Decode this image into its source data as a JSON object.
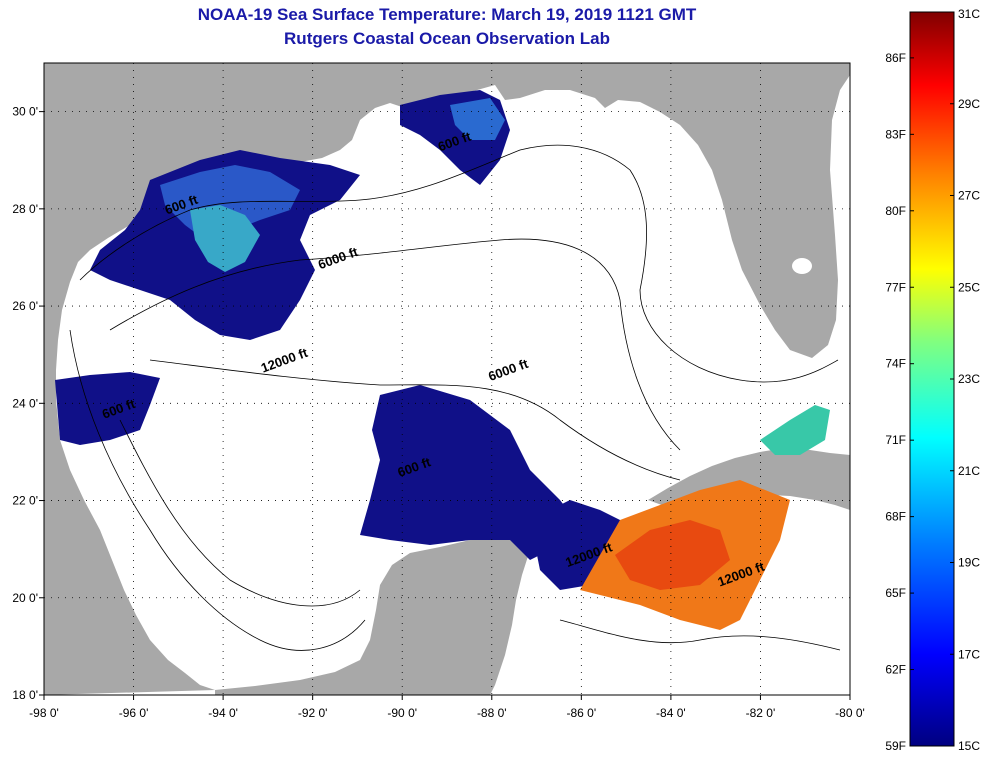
{
  "title": {
    "line1": "NOAA-19 Sea Surface Temperature:  March 19, 2019 1121 GMT",
    "line2": "Rutgers Coastal Ocean Observation Lab"
  },
  "axes": {
    "lon_ticks": [
      "-98 0'",
      "-96 0'",
      "-94 0'",
      "-92 0'",
      "-90 0'",
      "-88 0'",
      "-86 0'",
      "-84 0'",
      "-82 0'",
      "-80 0'"
    ],
    "lat_ticks": [
      "30 0'",
      "28 0'",
      "26 0'",
      "24 0'",
      "22 0'",
      "20 0'",
      "18 0'"
    ],
    "lon_range": [
      -98,
      -80
    ],
    "lat_range": [
      18,
      31
    ],
    "grid": "dotted"
  },
  "contour_labels": [
    {
      "text": "600 ft",
      "lon": -94.9,
      "lat": 28.0
    },
    {
      "text": "6000 ft",
      "lon": -91.4,
      "lat": 26.9
    },
    {
      "text": "600 ft",
      "lon": -88.8,
      "lat": 29.3
    },
    {
      "text": "12000 ft",
      "lon": -92.6,
      "lat": 24.8
    },
    {
      "text": "6000 ft",
      "lon": -87.6,
      "lat": 24.6
    },
    {
      "text": "600 ft",
      "lon": -89.7,
      "lat": 22.6
    },
    {
      "text": "12000 ft",
      "lon": -85.8,
      "lat": 20.8
    },
    {
      "text": "12000 ft",
      "lon": -82.4,
      "lat": 20.4
    },
    {
      "text": "600 ft",
      "lon": -96.3,
      "lat": 23.8
    }
  ],
  "colorbar": {
    "f_labels": [
      "86F",
      "83F",
      "80F",
      "77F",
      "74F",
      "71F",
      "68F",
      "65F",
      "62F",
      "59F"
    ],
    "c_labels": [
      "31C",
      "29C",
      "27C",
      "25C",
      "23C",
      "21C",
      "19C",
      "17C",
      "15C"
    ],
    "min_c": 15,
    "max_c": 31,
    "colors": [
      "#000080",
      "#0000ff",
      "#0080ff",
      "#00ffff",
      "#80ff80",
      "#ffff00",
      "#ff8000",
      "#ff0000",
      "#800000"
    ]
  },
  "colors": {
    "land": "#a8a8a8",
    "water": "#ffffff",
    "title": "#1a1aa8",
    "cold_sst": "#101088"
  }
}
